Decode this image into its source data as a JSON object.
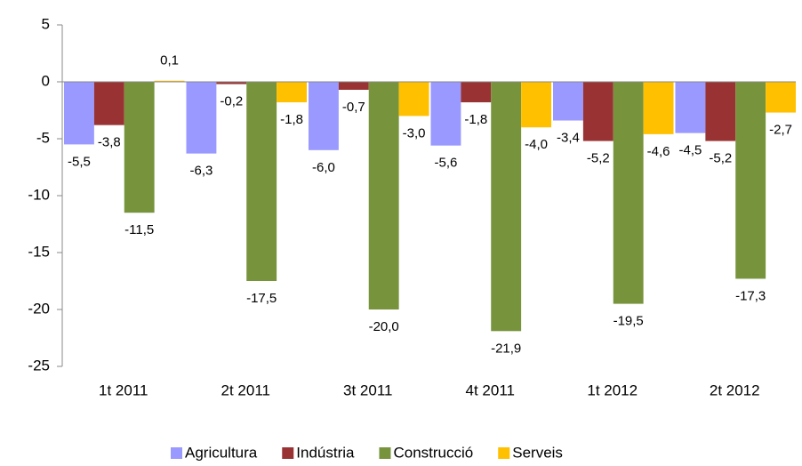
{
  "chart_data": {
    "type": "bar",
    "categories": [
      "1t 2011",
      "2t 2011",
      "3t 2011",
      "4t 2011",
      "1t 2012",
      "2t 2012"
    ],
    "series": [
      {
        "name": "Agricultura",
        "color": "#9999ff",
        "values": [
          -5.5,
          -6.3,
          -6.0,
          -5.6,
          -3.4,
          -4.5
        ],
        "value_labels": [
          "-5,5",
          "-6,3",
          "-6,0",
          "-5,6",
          "-3,4",
          "-4,5"
        ]
      },
      {
        "name": "Indústria",
        "color": "#993333",
        "values": [
          -3.8,
          -0.2,
          -0.7,
          -1.8,
          -5.2,
          -5.2
        ],
        "value_labels": [
          "-3,8",
          "-0,2",
          "-0,7",
          "-1,8",
          "-5,2",
          "-5,2"
        ]
      },
      {
        "name": "Construcció",
        "color": "#77933c",
        "values": [
          -11.5,
          -17.5,
          -20.0,
          -21.9,
          -19.5,
          -17.3
        ],
        "value_labels": [
          "-11,5",
          "-17,5",
          "-20,0",
          "-21,9",
          "-19,5",
          "-17,3"
        ]
      },
      {
        "name": "Serveis",
        "color": "#ffc000",
        "values": [
          0.1,
          -1.8,
          -3.0,
          -4.0,
          -4.6,
          -2.7
        ],
        "value_labels": [
          "0,1",
          "-1,8",
          "-3,0",
          "-4,0",
          "-4,6",
          "-2,7"
        ]
      }
    ],
    "ylim": [
      -25,
      5
    ],
    "yticks": [
      5,
      0,
      -5,
      -10,
      -15,
      -20,
      -25
    ],
    "legend": "bottom"
  }
}
